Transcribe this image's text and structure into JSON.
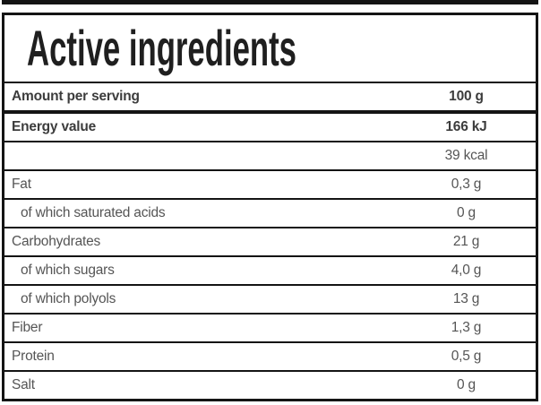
{
  "nutrition_label": {
    "title": "Active ingredients",
    "serving": {
      "label": "Amount per serving",
      "value": "100 g"
    },
    "rows": [
      {
        "name": "Energy value",
        "value": "166 kJ"
      },
      {
        "name": "",
        "value": "39 kcal"
      },
      {
        "name": "Fat",
        "value": "0,3 g"
      },
      {
        "name": "of which saturated acids",
        "value": "0 g"
      },
      {
        "name": "Carbohydrates",
        "value": "21 g"
      },
      {
        "name": "of which sugars",
        "value": "4,0 g"
      },
      {
        "name": "of which polyols",
        "value": "13 g"
      },
      {
        "name": "Fiber",
        "value": "1,3 g"
      },
      {
        "name": "Protein",
        "value": "0,5 g"
      },
      {
        "name": "Salt",
        "value": "0 g"
      }
    ]
  },
  "colors": {
    "border": "#141414",
    "title_text": "#1f1f1f",
    "bold_text": "#3c3c3c",
    "regular_text": "#555555",
    "background": "#ffffff"
  }
}
